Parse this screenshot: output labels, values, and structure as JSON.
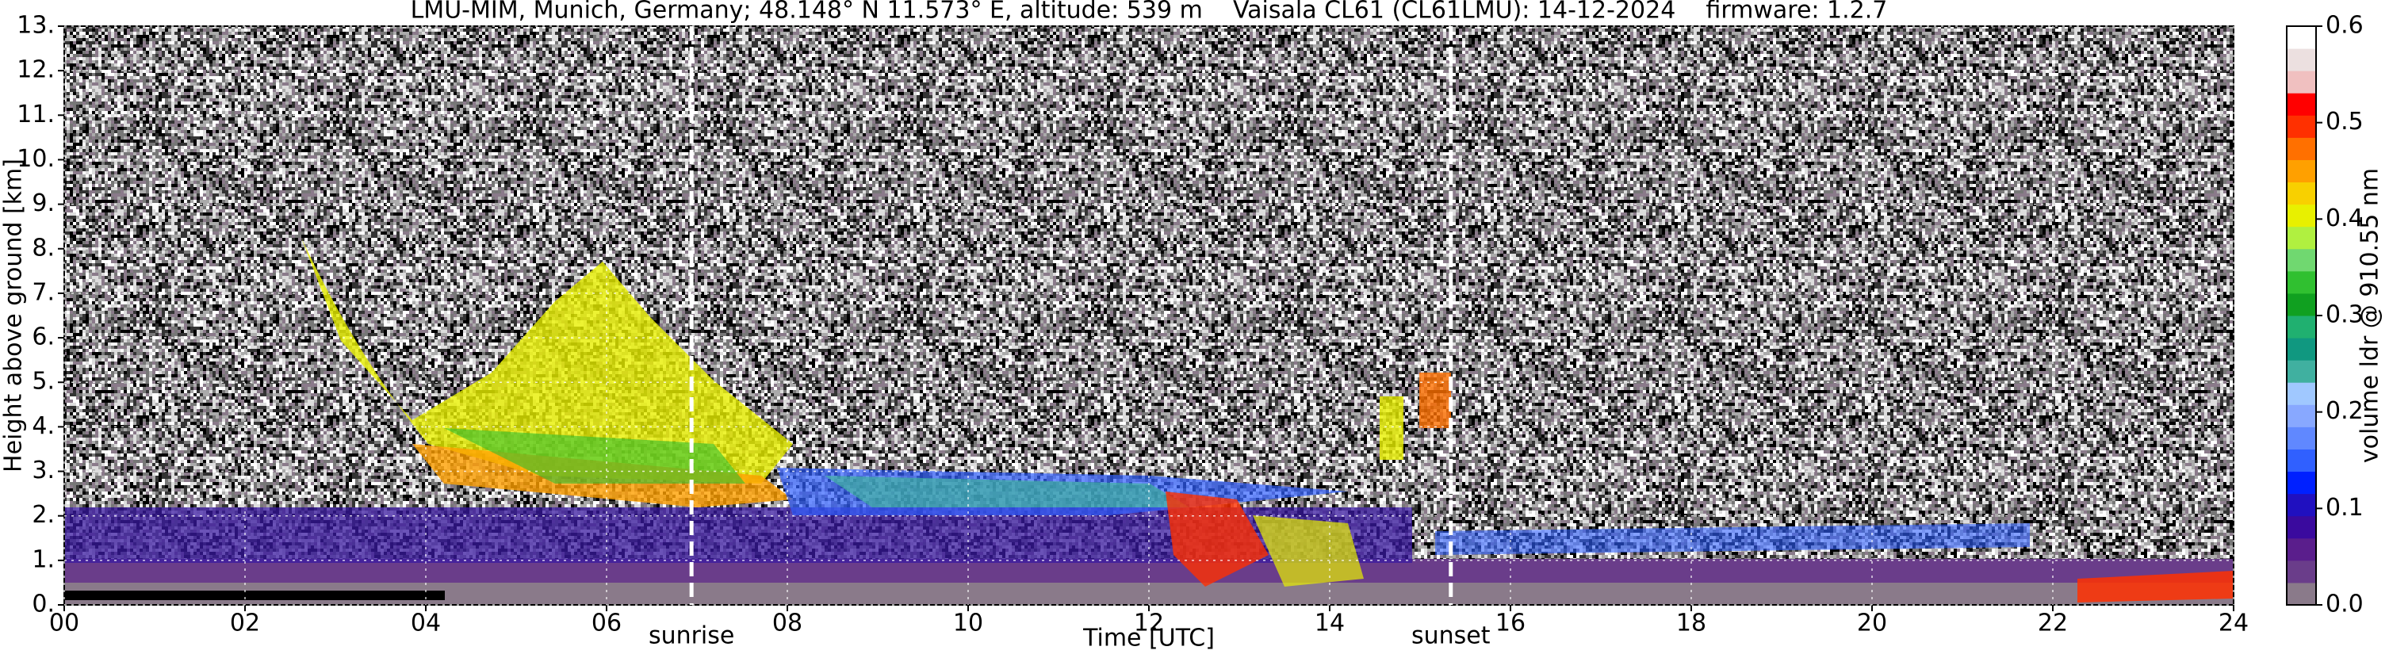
{
  "chart_data": {
    "type": "heatmap",
    "title": "LMU-MIM, Munich, Germany; 48.148° N 11.573° E, altitude: 539 m    Vaisala CL61 (CL61LMU): 14-12-2024    firmware: 1.2.7",
    "x_label": "Time [UTC]",
    "y_label": "Height above ground [km]",
    "xlim": [
      0,
      24
    ],
    "xticks": [
      {
        "value": 0,
        "label": "00"
      },
      {
        "value": 2,
        "label": "02"
      },
      {
        "value": 4,
        "label": "04"
      },
      {
        "value": 6,
        "label": "06"
      },
      {
        "value": 8,
        "label": "08"
      },
      10,
      12,
      14,
      16,
      18,
      20,
      22,
      24
    ],
    "ylim": [
      0,
      13
    ],
    "yticks": [
      {
        "value": 0,
        "label": "0."
      },
      {
        "value": 1,
        "label": "1."
      },
      {
        "value": 2,
        "label": "2."
      },
      {
        "value": 3,
        "label": "3."
      },
      {
        "value": 4,
        "label": "4."
      },
      {
        "value": 5,
        "label": "5."
      },
      {
        "value": 6,
        "label": "6."
      },
      {
        "value": 7,
        "label": "7."
      },
      {
        "value": 8,
        "label": "8."
      },
      {
        "value": 9,
        "label": "9."
      },
      {
        "value": 10,
        "label": "10."
      },
      {
        "value": 11,
        "label": "11."
      },
      {
        "value": 12,
        "label": "12."
      },
      {
        "value": 13,
        "label": "13."
      }
    ],
    "grid": true,
    "annotations": [
      {
        "text": "sunrise",
        "x": 6.94
      },
      {
        "text": "sunset",
        "x": 15.34
      }
    ],
    "colorbar": {
      "label": "volume ldr @ 910.55 nm",
      "lim": [
        0,
        0.6
      ],
      "ticks": [
        {
          "value": 0,
          "label": "0.0"
        },
        0.1,
        0.2,
        0.3,
        0.4,
        0.5,
        0.6
      ],
      "colors": [
        "#8a7a8a",
        "#6a3d8a",
        "#5a1e8c",
        "#3a0a9e",
        "#2010c0",
        "#0020ff",
        "#3060ff",
        "#6088ff",
        "#88a8ff",
        "#a0c8ff",
        "#40b0a0",
        "#109880",
        "#20b070",
        "#10a020",
        "#30c030",
        "#70d870",
        "#b0f040",
        "#e8f000",
        "#f8d000",
        "#ffa000",
        "#ff7000",
        "#ff3000",
        "#ff0000",
        "#f0c0c0",
        "#ece0e0",
        "#ffffff"
      ]
    }
  }
}
